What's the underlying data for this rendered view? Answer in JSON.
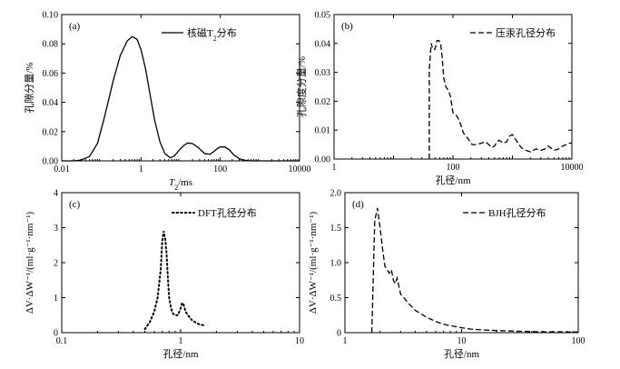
{
  "chart_data": [
    {
      "panel": "(a)",
      "type": "line",
      "xscale": "log",
      "title": "",
      "xlabel_main": "T",
      "xlabel_sub": "2",
      "xlabel_unit": "/ms",
      "ylabel": "孔隙分量/%",
      "xlim": [
        0.01,
        10000
      ],
      "ylim": [
        0,
        0.1
      ],
      "xticks": [
        0.01,
        1,
        100,
        10000
      ],
      "xtick_labels": [
        "0.01",
        "1",
        "100",
        "10000"
      ],
      "yticks": [
        0,
        0.02,
        0.04,
        0.06,
        0.08,
        0.1
      ],
      "ytick_labels": [
        "0.00",
        "0.02",
        "0.04",
        "0.06",
        "0.08",
        "0.10"
      ],
      "legend_main": "核磁T",
      "legend_sub": "2",
      "legend_suffix": "分布",
      "line_style": "solid",
      "series": [
        {
          "name": "核磁T2分布",
          "x": [
            0.01,
            0.02,
            0.03,
            0.05,
            0.08,
            0.12,
            0.2,
            0.3,
            0.45,
            0.6,
            0.8,
            1.0,
            1.3,
            1.7,
            2.2,
            3,
            4,
            5.5,
            7,
            9,
            12,
            15,
            20,
            28,
            40,
            55,
            70,
            85,
            100,
            130,
            170,
            220,
            300,
            400,
            600,
            1000,
            2000,
            5000,
            10000
          ],
          "y": [
            0.0,
            0.0,
            0.0005,
            0.003,
            0.012,
            0.03,
            0.055,
            0.072,
            0.082,
            0.085,
            0.083,
            0.076,
            0.063,
            0.045,
            0.028,
            0.013,
            0.005,
            0.002,
            0.0035,
            0.007,
            0.0105,
            0.0122,
            0.0118,
            0.009,
            0.005,
            0.0045,
            0.0065,
            0.0085,
            0.0095,
            0.0095,
            0.0075,
            0.004,
            0.0015,
            0.0004,
            0.0,
            0.0,
            0.0,
            0.0,
            0.0
          ]
        }
      ]
    },
    {
      "panel": "(b)",
      "type": "line",
      "xscale": "log",
      "title": "",
      "xlabel_main": "孔径/nm",
      "ylabel": "孔隙度分量/%",
      "xlim": [
        1,
        10000
      ],
      "ylim": [
        0,
        0.05
      ],
      "xticks": [
        1,
        10,
        100,
        1000,
        10000
      ],
      "xtick_labels": [
        "1",
        "",
        "100",
        "",
        "10000"
      ],
      "yticks": [
        0,
        0.01,
        0.02,
        0.03,
        0.04,
        0.05
      ],
      "ytick_labels": [
        "0.00",
        "0.01",
        "0.02",
        "0.03",
        "0.04",
        "0.05"
      ],
      "legend_main": "压汞孔径分布",
      "line_style": "dashed",
      "series": [
        {
          "name": "压汞孔径分布",
          "x": [
            40,
            40,
            43,
            46,
            50,
            54,
            58,
            62,
            66,
            70,
            76,
            82,
            90,
            100,
            115,
            130,
            150,
            180,
            210,
            250,
            300,
            350,
            400,
            450,
            500,
            550,
            600,
            700,
            800,
            900,
            1000,
            1200,
            1400,
            1700,
            2000,
            2500,
            3000,
            3500,
            4000,
            5000,
            6000,
            7000,
            8000,
            9000,
            10000
          ],
          "y": [
            0.0,
            0.031,
            0.04,
            0.038,
            0.038,
            0.041,
            0.041,
            0.04,
            0.035,
            0.028,
            0.025,
            0.024,
            0.022,
            0.016,
            0.015,
            0.013,
            0.009,
            0.007,
            0.005,
            0.005,
            0.0055,
            0.006,
            0.005,
            0.004,
            0.0045,
            0.006,
            0.0065,
            0.0055,
            0.006,
            0.008,
            0.0085,
            0.006,
            0.004,
            0.003,
            0.0025,
            0.0035,
            0.003,
            0.0035,
            0.0045,
            0.003,
            0.0035,
            0.0045,
            0.005,
            0.0055,
            0.0055
          ]
        }
      ]
    },
    {
      "panel": "(c)",
      "type": "line",
      "xscale": "log",
      "title": "",
      "xlabel_main": "孔径/nm",
      "ylabel": "ΔV·ΔW⁻¹/(ml·g⁻¹·nm⁻¹)",
      "xlim": [
        0.1,
        10
      ],
      "ylim": [
        0,
        4
      ],
      "xticks": [
        0.1,
        1,
        10
      ],
      "xtick_labels": [
        "0.1",
        "1",
        "10"
      ],
      "yticks": [
        0,
        1,
        2,
        3,
        4
      ],
      "ytick_labels": [
        "0",
        "1",
        "2",
        "3",
        "4"
      ],
      "legend_main": "DFT孔径分布",
      "line_style": "dotted",
      "series": [
        {
          "name": "DFT孔径分布",
          "x": [
            0.5,
            0.55,
            0.6,
            0.64,
            0.68,
            0.7,
            0.72,
            0.74,
            0.76,
            0.78,
            0.8,
            0.83,
            0.86,
            0.9,
            0.95,
            1.0,
            1.03,
            1.06,
            1.1,
            1.15,
            1.25,
            1.4,
            1.6
          ],
          "y": [
            0.1,
            0.3,
            0.6,
            1.0,
            1.8,
            2.6,
            2.9,
            2.7,
            2.3,
            1.6,
            1.0,
            0.7,
            0.55,
            0.5,
            0.5,
            0.7,
            0.85,
            0.8,
            0.6,
            0.5,
            0.35,
            0.25,
            0.2
          ]
        }
      ]
    },
    {
      "panel": "(d)",
      "type": "line",
      "xscale": "log",
      "title": "",
      "xlabel_main": "孔径/nm",
      "ylabel": "ΔV·ΔW⁻¹/(ml·g⁻¹·nm⁻¹)",
      "xlim": [
        1,
        100
      ],
      "ylim": [
        0,
        2.0
      ],
      "xticks": [
        1,
        10,
        100
      ],
      "xtick_labels": [
        "1",
        "10",
        "100"
      ],
      "yticks": [
        0,
        0.5,
        1.0,
        1.5,
        2.0
      ],
      "ytick_labels": [
        "0",
        "0.5",
        "1.0",
        "1.5",
        "2.0"
      ],
      "legend_main": "BJH孔径分布",
      "line_style": "dashed",
      "series": [
        {
          "name": "BJH孔径分布",
          "x": [
            1.7,
            1.8,
            1.9,
            2.0,
            2.1,
            2.2,
            2.3,
            2.4,
            2.5,
            2.6,
            2.7,
            2.8,
            3.0,
            3.2,
            3.5,
            4.0,
            5,
            6,
            7,
            8,
            10,
            12,
            15,
            20,
            25,
            30,
            40,
            50,
            70,
            100
          ],
          "y": [
            0.0,
            1.6,
            1.78,
            1.5,
            1.2,
            0.95,
            0.9,
            0.85,
            0.9,
            0.75,
            0.7,
            0.78,
            0.55,
            0.5,
            0.42,
            0.32,
            0.22,
            0.16,
            0.12,
            0.1,
            0.07,
            0.05,
            0.04,
            0.03,
            0.025,
            0.02,
            0.015,
            0.012,
            0.01,
            0.01
          ]
        }
      ]
    }
  ]
}
